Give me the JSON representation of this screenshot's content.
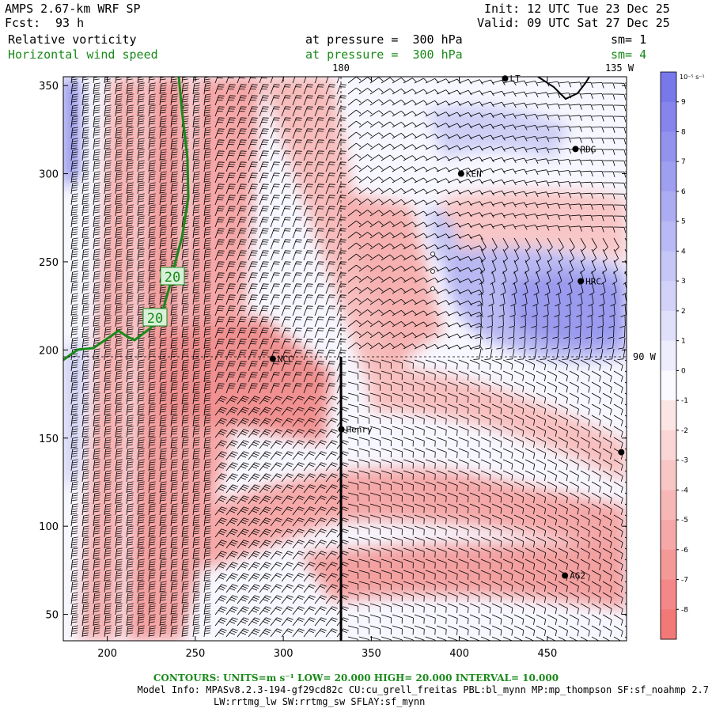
{
  "header": {
    "model": "AMPS 2.67-km WRF SP",
    "fcst_label": "Fcst:",
    "fcst_value": "93 h",
    "init": "Init: 12 UTC Tue 23 Dec 25",
    "valid": "Valid: 09 UTC Sat 27 Dec 25",
    "field1": "Relative vorticity",
    "field2": "Horizontal wind speed",
    "pressure1": "at pressure =  300 hPa",
    "pressure2": "at pressure =  300 hPa",
    "sm1": "sm= 1",
    "sm2": "sm= 4"
  },
  "footer": {
    "contours": "CONTOURS:  UNITS=m s⁻¹  LOW=  20.000      HIGH=  20.000      INTERVAL=   10.000",
    "model_info": "Model Info: MPASv8.2.3-194-gf29cd82c CU:cu_grell_freitas PBL:bl_mynn MP:mp_thompson SF:sf_noahmp 2.7",
    "model_info2": "LW:rrtmg_lw SW:rrtmg_sw SFLAY:sf_mynn"
  },
  "colors": {
    "positive": "#7b7be8",
    "negative": "#f07070",
    "contour": "#1a8a1a"
  },
  "chart_data": {
    "type": "heatmap",
    "title": "Relative vorticity / Horizontal wind speed at 300 hPa",
    "xlim": [
      175,
      495
    ],
    "ylim": [
      35,
      355
    ],
    "x_ticks": [
      200,
      250,
      300,
      350,
      400,
      450
    ],
    "y_ticks": [
      50,
      100,
      150,
      200,
      250,
      300,
      350
    ],
    "meridian_labels": [
      "180",
      "135 W",
      "90 W"
    ],
    "colorbar": {
      "units": "10⁻⁵ s⁻¹",
      "levels": [
        9,
        8,
        7,
        6,
        5,
        4,
        3,
        2,
        1,
        0,
        -1,
        -2,
        -3,
        -4,
        -5,
        -6,
        -7,
        -8
      ]
    },
    "contour_labels": [
      "20",
      "20"
    ],
    "stations": [
      {
        "name": "NCC",
        "x": 294,
        "y": 195
      },
      {
        "name": "Henry",
        "x": 333,
        "y": 155
      },
      {
        "name": "KEN",
        "x": 401,
        "y": 300
      },
      {
        "name": "RDG",
        "x": 466,
        "y": 314
      },
      {
        "name": "HRC",
        "x": 469,
        "y": 239
      },
      {
        "name": "AG2",
        "x": 460,
        "y": 72
      },
      {
        "name": "LT",
        "x": 426,
        "y": 354
      },
      {
        "name": "",
        "x": 492,
        "y": 142
      }
    ]
  }
}
